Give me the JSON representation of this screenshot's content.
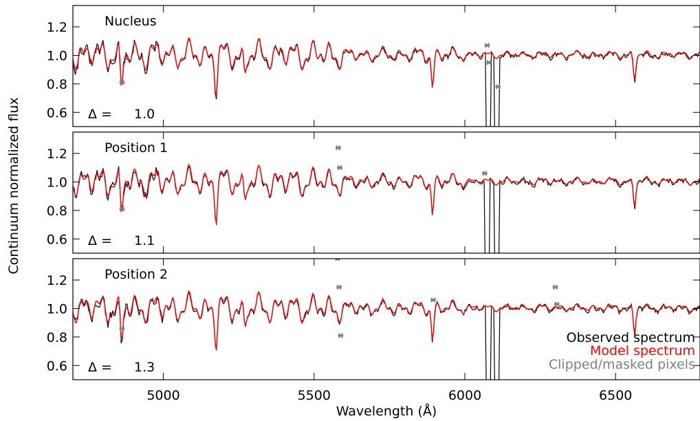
{
  "chart_data": {
    "type": "line",
    "ylabel": "Continuum normalized flux",
    "xlabel": "Wavelength (Å)",
    "xlim": [
      4700,
      6780
    ],
    "ylim": [
      0.5,
      1.35
    ],
    "x_ticks": [
      5000,
      5500,
      6000,
      6500
    ],
    "y_ticks": [
      0.6,
      0.8,
      1.0,
      1.2
    ],
    "y_tick_labels": [
      "0.6",
      "0.8",
      "1.0",
      "1.2"
    ],
    "legend": {
      "placement": "bottom-right",
      "entries": [
        {
          "label": "Observed spectrum",
          "color": "#000000"
        },
        {
          "label": "Model spectrum",
          "color": "#ff0000"
        },
        {
          "label": "Clipped/masked pixels",
          "color": "#808080"
        }
      ]
    },
    "absorption_lines": [
      {
        "x": 4861,
        "y": 0.74
      },
      {
        "x": 5175,
        "y": 0.78
      },
      {
        "x": 5270,
        "y": 0.85
      },
      {
        "x": 5893,
        "y": 0.78
      },
      {
        "x": 6563,
        "y": 0.83
      }
    ],
    "panels": [
      {
        "name": "Nucleus",
        "delta_label": "Δ =",
        "delta_value": "1.0",
        "masked_regions": [
          [
            6070,
            6085
          ],
          [
            6100,
            6115
          ]
        ],
        "markers": [
          {
            "x": 4863,
            "y": 0.81
          },
          {
            "x": 6074,
            "y": 1.07
          },
          {
            "x": 6080,
            "y": 0.95
          },
          {
            "x": 6110,
            "y": 0.78
          }
        ]
      },
      {
        "name": "Position 1",
        "delta_label": "Δ =",
        "delta_value": "1.1",
        "masked_regions": [
          [
            6065,
            6080
          ],
          [
            6100,
            6112
          ]
        ],
        "markers": [
          {
            "x": 4863,
            "y": 0.81
          },
          {
            "x": 5580,
            "y": 1.24
          },
          {
            "x": 5585,
            "y": 1.1
          },
          {
            "x": 6066,
            "y": 1.06
          }
        ]
      },
      {
        "name": "Position 2",
        "delta_label": "Δ =",
        "delta_value": "1.3",
        "masked_regions": [
          [
            6070,
            6085
          ],
          [
            6100,
            6112
          ]
        ],
        "markers": [
          {
            "x": 4863,
            "y": 0.86
          },
          {
            "x": 5578,
            "y": 1.35
          },
          {
            "x": 5583,
            "y": 1.15
          },
          {
            "x": 5588,
            "y": 0.81
          },
          {
            "x": 5895,
            "y": 1.06
          },
          {
            "x": 6300,
            "y": 1.15
          },
          {
            "x": 6305,
            "y": 1.03
          }
        ]
      }
    ]
  }
}
